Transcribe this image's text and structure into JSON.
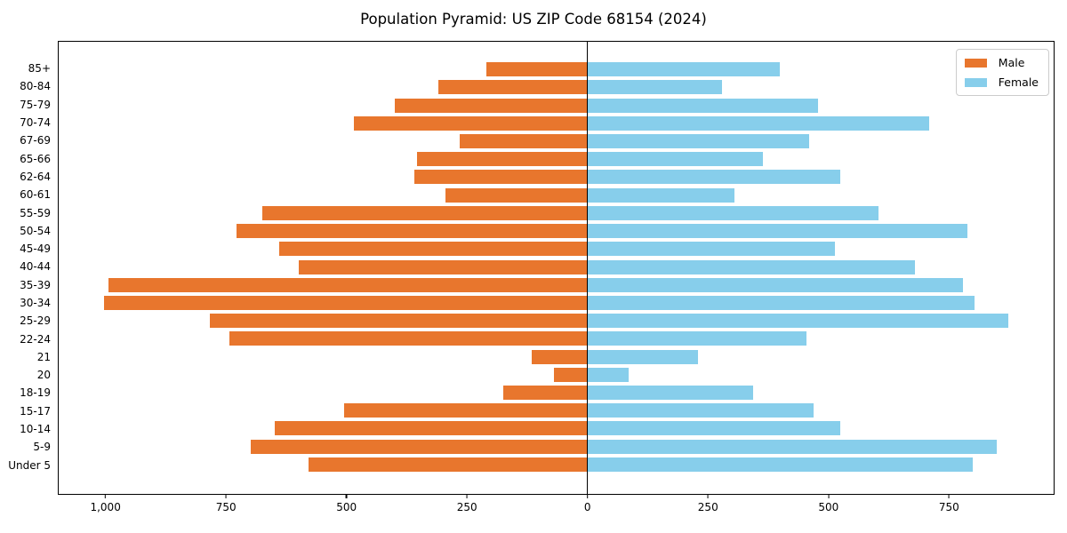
{
  "title": "Population Pyramid: US ZIP Code 68154 (2024)",
  "legend": {
    "male_label": "Male",
    "female_label": "Female",
    "position": "upper right"
  },
  "colors": {
    "male": "#e8762d",
    "female": "#87ceeb",
    "axis": "#000000",
    "background": "#ffffff",
    "legend_border": "#cccccc"
  },
  "chart_data": {
    "type": "bar",
    "subtype": "population-pyramid",
    "orientation": "horizontal",
    "title": "Population Pyramid: US ZIP Code 68154 (2024)",
    "categories_top_to_bottom": [
      "85+",
      "80-84",
      "75-79",
      "70-74",
      "67-69",
      "65-66",
      "62-64",
      "60-61",
      "55-59",
      "50-54",
      "45-49",
      "40-44",
      "35-39",
      "30-34",
      "25-29",
      "22-24",
      "21",
      "20",
      "18-19",
      "15-17",
      "10-14",
      "5-9",
      "Under 5"
    ],
    "series": [
      {
        "name": "Male",
        "direction": "left",
        "values": [
          210,
          310,
          400,
          485,
          265,
          355,
          360,
          295,
          675,
          730,
          640,
          600,
          995,
          1005,
          785,
          745,
          115,
          70,
          175,
          505,
          650,
          700,
          580
        ]
      },
      {
        "name": "Female",
        "direction": "right",
        "values": [
          400,
          280,
          480,
          710,
          460,
          365,
          525,
          305,
          605,
          790,
          515,
          680,
          780,
          805,
          875,
          455,
          230,
          85,
          345,
          470,
          525,
          850,
          800
        ]
      }
    ],
    "x_axis": {
      "min": -1099,
      "max": 969,
      "ticks": [
        {
          "value": -1000,
          "label": "1,000"
        },
        {
          "value": -750,
          "label": "750"
        },
        {
          "value": -500,
          "label": "500"
        },
        {
          "value": -250,
          "label": "250"
        },
        {
          "value": 0,
          "label": "0"
        },
        {
          "value": 250,
          "label": "250"
        },
        {
          "value": 500,
          "label": "500"
        },
        {
          "value": 750,
          "label": "750"
        }
      ]
    },
    "grid": false,
    "zero_reference_line": true,
    "legend_position": "upper right"
  }
}
